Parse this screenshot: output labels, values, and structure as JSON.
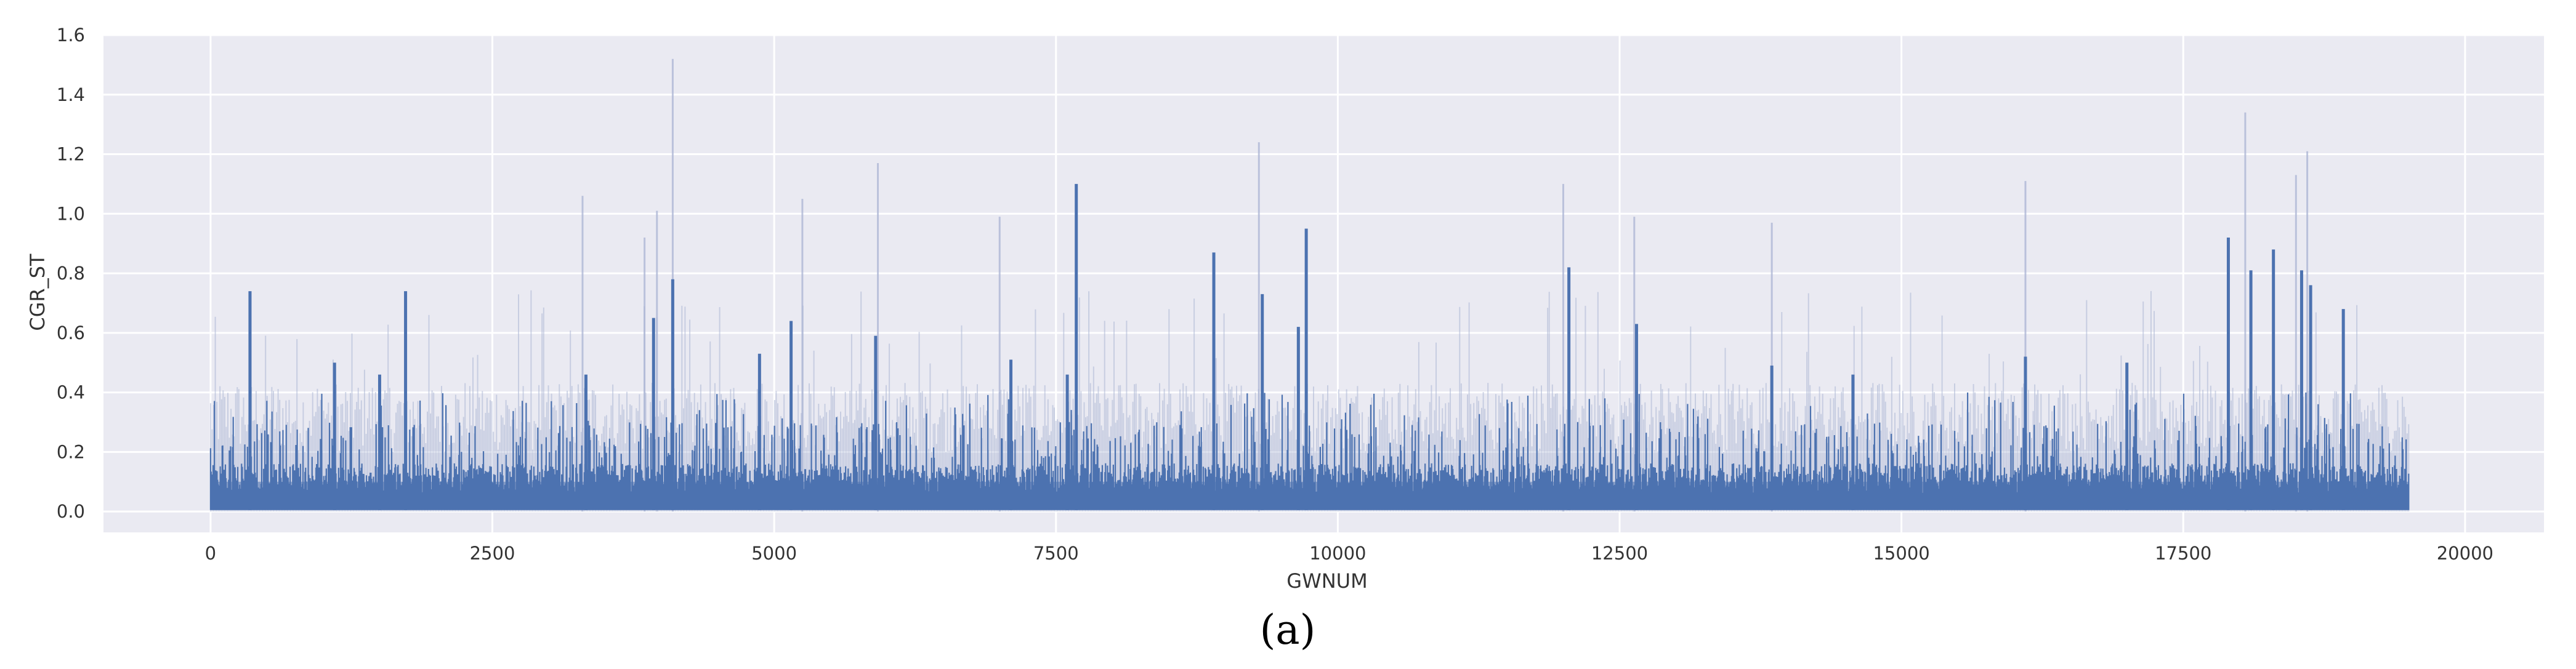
{
  "chart_data": {
    "type": "line",
    "xlabel": "GWNUM",
    "ylabel": "CGR_ST",
    "xlim": [
      -950,
      20700
    ],
    "ylim": [
      -0.07,
      1.6
    ],
    "xticks": [
      0,
      2500,
      5000,
      7500,
      10000,
      12500,
      15000,
      17500,
      20000
    ],
    "xtick_labels": [
      "0",
      "2500",
      "5000",
      "7500",
      "10000",
      "12500",
      "15000",
      "17500",
      "20000"
    ],
    "yticks": [
      0.0,
      0.2,
      0.4,
      0.6,
      0.8,
      1.0,
      1.2,
      1.4,
      1.6
    ],
    "ytick_labels": [
      "0.0",
      "0.2",
      "0.4",
      "0.6",
      "0.8",
      "1.0",
      "1.2",
      "1.4",
      "1.6"
    ],
    "grid": true,
    "background": "#EAEAF2",
    "series_color": "#4C72B0",
    "x_range": [
      0,
      19500
    ],
    "baseline_level": 0.1,
    "series": [
      {
        "style": "solid",
        "peaks": [
          {
            "x": 350,
            "y": 0.74
          },
          {
            "x": 1100,
            "y": 0.5
          },
          {
            "x": 1500,
            "y": 0.46
          },
          {
            "x": 1730,
            "y": 0.74
          },
          {
            "x": 3330,
            "y": 0.46
          },
          {
            "x": 3930,
            "y": 0.65
          },
          {
            "x": 4100,
            "y": 0.78
          },
          {
            "x": 4870,
            "y": 0.53
          },
          {
            "x": 5150,
            "y": 0.64
          },
          {
            "x": 5900,
            "y": 0.59
          },
          {
            "x": 7100,
            "y": 0.51
          },
          {
            "x": 7600,
            "y": 0.46
          },
          {
            "x": 7680,
            "y": 1.1
          },
          {
            "x": 8900,
            "y": 0.87
          },
          {
            "x": 9330,
            "y": 0.73
          },
          {
            "x": 9650,
            "y": 0.62
          },
          {
            "x": 9720,
            "y": 0.95
          },
          {
            "x": 12050,
            "y": 0.82
          },
          {
            "x": 12650,
            "y": 0.63
          },
          {
            "x": 13850,
            "y": 0.49
          },
          {
            "x": 14570,
            "y": 0.46
          },
          {
            "x": 16100,
            "y": 0.52
          },
          {
            "x": 17000,
            "y": 0.5
          },
          {
            "x": 17900,
            "y": 0.92
          },
          {
            "x": 18100,
            "y": 0.81
          },
          {
            "x": 18300,
            "y": 0.88
          },
          {
            "x": 18550,
            "y": 0.81
          },
          {
            "x": 18630,
            "y": 0.76
          },
          {
            "x": 18920,
            "y": 0.68
          }
        ]
      },
      {
        "style": "confidence band",
        "peaks": [
          {
            "x": 3300,
            "y": 1.06
          },
          {
            "x": 3850,
            "y": 0.92
          },
          {
            "x": 3960,
            "y": 1.01
          },
          {
            "x": 4100,
            "y": 1.52
          },
          {
            "x": 5250,
            "y": 1.05
          },
          {
            "x": 5920,
            "y": 1.17
          },
          {
            "x": 7000,
            "y": 0.99
          },
          {
            "x": 9300,
            "y": 1.24
          },
          {
            "x": 12000,
            "y": 1.1
          },
          {
            "x": 12630,
            "y": 0.99
          },
          {
            "x": 13850,
            "y": 0.97
          },
          {
            "x": 16100,
            "y": 1.11
          },
          {
            "x": 18050,
            "y": 1.34
          },
          {
            "x": 18500,
            "y": 1.13
          },
          {
            "x": 18600,
            "y": 1.21
          }
        ]
      }
    ]
  },
  "caption": "(a)"
}
